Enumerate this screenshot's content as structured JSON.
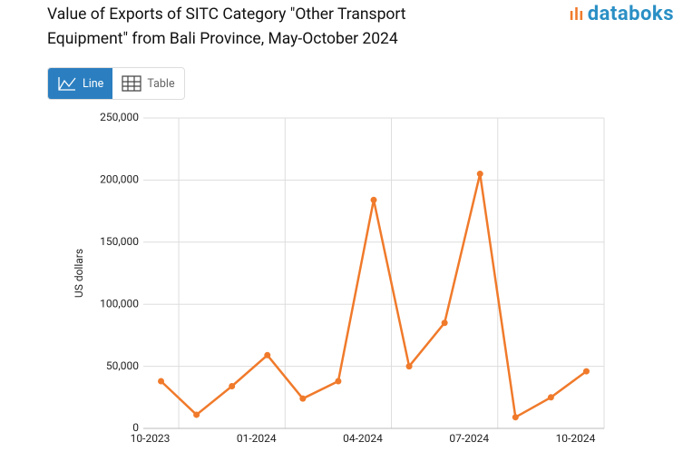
{
  "header": {
    "logo": "databoks",
    "buttons": [
      "Line",
      "Table"
    ]
  },
  "chart_data": {
    "type": "line",
    "title": "Value of Exports of SITC Category \"Other Transport Equipment\" from Bali Province, May-October 2024",
    "ylabel": "US dollars",
    "categories": [
      "10-2023",
      null,
      null,
      "01-2024",
      null,
      null,
      "04-2024",
      null,
      null,
      "07-2024",
      null,
      null,
      "10-2024"
    ],
    "series": [
      {
        "name": "US dollars",
        "color": "#f07a2b",
        "values": [
          38000,
          11000,
          34000,
          59000,
          24000,
          38000,
          184000,
          50000,
          85000,
          205000,
          9000,
          25000,
          46000
        ]
      }
    ],
    "ylim": [
      0,
      250000
    ],
    "yticks": [
      0,
      {
        "value": 50000,
        "label": "50,000"
      },
      {
        "value": 100000,
        "label": "100,000"
      },
      {
        "value": 150000,
        "label": "150,000"
      },
      {
        "value": 200000,
        "label": "200,000"
      },
      {
        "value": 250000,
        "label": "250,000"
      }
    ],
    "grid": true
  }
}
